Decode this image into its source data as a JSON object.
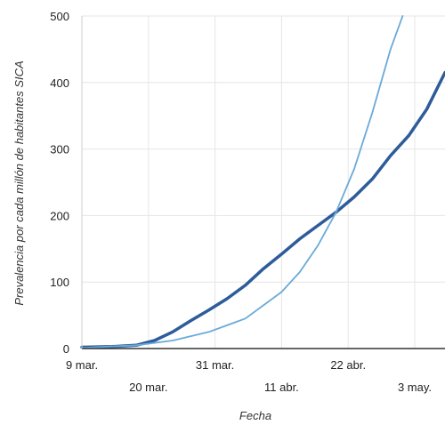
{
  "chart_data": {
    "type": "line",
    "title": "",
    "xlabel": "Fecha",
    "ylabel": "Prevalencia por cada millón de habitantes SICA",
    "x_ticks": [
      "9 mar.",
      "20 mar.",
      "31 mar.",
      "11 abr.",
      "22 abr.",
      "3 may."
    ],
    "y_ticks": [
      0,
      100,
      200,
      300,
      400,
      500
    ],
    "ylim": [
      0,
      500
    ],
    "xlim": [
      "2020-03-09",
      "2020-05-08"
    ],
    "grid": true,
    "legend": "none",
    "series": [
      {
        "color": "#2e5c9a",
        "x": [
          "2020-03-09",
          "2020-03-14",
          "2020-03-18",
          "2020-03-21",
          "2020-03-24",
          "2020-03-27",
          "2020-03-30",
          "2020-04-02",
          "2020-04-05",
          "2020-04-08",
          "2020-04-11",
          "2020-04-14",
          "2020-04-17",
          "2020-04-20",
          "2020-04-23",
          "2020-04-26",
          "2020-04-29",
          "2020-05-02",
          "2020-05-05",
          "2020-05-08"
        ],
        "values": [
          2,
          3,
          5,
          12,
          25,
          42,
          58,
          75,
          95,
          120,
          142,
          165,
          185,
          205,
          228,
          255,
          290,
          320,
          360,
          415
        ]
      },
      {
        "color": "#6aaad8",
        "x": [
          "2020-03-09",
          "2020-03-18",
          "2020-03-24",
          "2020-03-30",
          "2020-04-05",
          "2020-04-11",
          "2020-04-14",
          "2020-04-17",
          "2020-04-20",
          "2020-04-23",
          "2020-04-26",
          "2020-04-29",
          "2020-05-01"
        ],
        "values": [
          1,
          5,
          12,
          25,
          45,
          85,
          115,
          155,
          205,
          270,
          355,
          450,
          500
        ]
      }
    ]
  }
}
